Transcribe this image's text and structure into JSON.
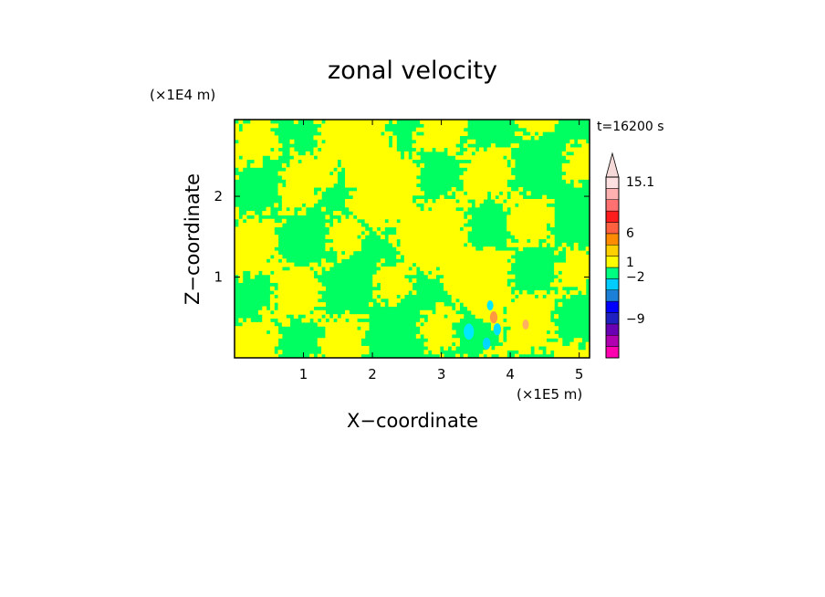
{
  "chart_data": {
    "type": "heatmap",
    "title": "zonal velocity",
    "xlabel": "X−coordinate",
    "ylabel": "Z−coordinate",
    "x_unit": "(×1E5 m)",
    "y_unit": "(×1E4 m)",
    "time_label": "t=16200 s",
    "xlim": [
      0,
      5.15
    ],
    "ylim": [
      0,
      2.95
    ],
    "x_ticks": [
      "1",
      "2",
      "3",
      "4",
      "5"
    ],
    "y_ticks": [
      "1",
      "2"
    ],
    "colorbar": {
      "labels": [
        "15.1",
        "6",
        "1",
        "−2",
        "−9"
      ],
      "levels": [
        {
          "color": "#ff00b0"
        },
        {
          "color": "#b000b0"
        },
        {
          "color": "#6a00b4"
        },
        {
          "color": "#2020c0"
        },
        {
          "color": "#0000ff"
        },
        {
          "color": "#1c7fd8"
        },
        {
          "color": "#00ccff"
        },
        {
          "color": "#00ff80"
        },
        {
          "color": "#ffff00"
        },
        {
          "color": "#ffd000"
        },
        {
          "color": "#ff8c00"
        },
        {
          "color": "#ff6040"
        },
        {
          "color": "#ff1c1c"
        },
        {
          "color": "#ff7070"
        },
        {
          "color": "#ffb0b0"
        },
        {
          "color": "#ffe0e0"
        }
      ],
      "extend_max_color": "#f5d8d8"
    },
    "dominant_colors": {
      "negative_small": "#00ff60",
      "positive_small": "#ffff00"
    }
  }
}
